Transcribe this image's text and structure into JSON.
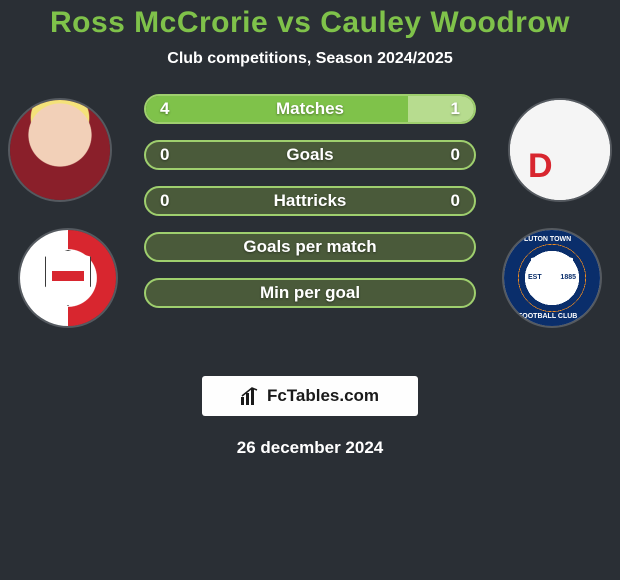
{
  "title": "Ross McCrorie vs Cauley Woodrow",
  "title_color": "#7fc24a",
  "title_fontsize": 30,
  "subtitle": "Club competitions, Season 2024/2025",
  "subtitle_color": "#ffffff",
  "subtitle_fontsize": 16,
  "background_color": "#2a2f35",
  "player_left": {
    "name": "Ross McCrorie",
    "club": "Bristol City"
  },
  "player_right": {
    "name": "Cauley Woodrow",
    "club": "Luton Town"
  },
  "bars": {
    "track_color": "#4a5a3a",
    "fill_left_color": "#7fc24a",
    "fill_right_color": "#b7dc8f",
    "border_color": "#9fcf6e",
    "label_fontsize": 17,
    "value_fontsize": 17,
    "rows": [
      {
        "label": "Matches",
        "left": "4",
        "right": "1",
        "left_pct": 80,
        "right_pct": 20
      },
      {
        "label": "Goals",
        "left": "0",
        "right": "0",
        "left_pct": 0,
        "right_pct": 0
      },
      {
        "label": "Hattricks",
        "left": "0",
        "right": "0",
        "left_pct": 0,
        "right_pct": 0
      },
      {
        "label": "Goals per match",
        "left": "",
        "right": "",
        "left_pct": 0,
        "right_pct": 0
      },
      {
        "label": "Min per goal",
        "left": "",
        "right": "",
        "left_pct": 0,
        "right_pct": 0
      }
    ]
  },
  "watermark": {
    "text": "FcTables.com",
    "box_bg": "#fefefe",
    "text_color": "#1a1a1a",
    "fontsize": 17
  },
  "date": "26 december 2024",
  "date_fontsize": 17,
  "luton_arc": {
    "top": "LUTON TOWN",
    "bottom": "FOOTBALL CLUB",
    "est": "EST",
    "year": "1885"
  }
}
